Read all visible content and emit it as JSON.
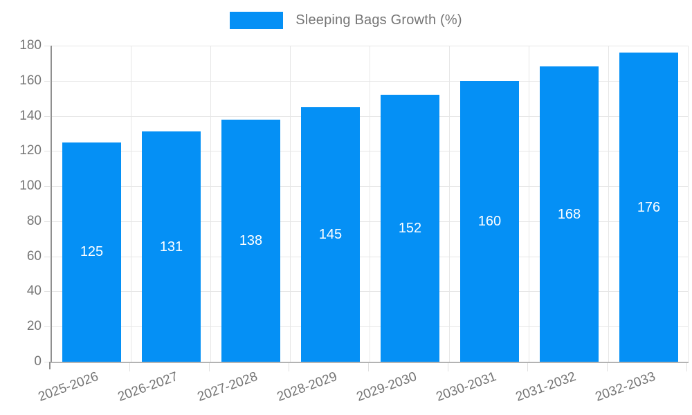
{
  "legend": {
    "label": "Sleeping Bags Growth (%)"
  },
  "colors": {
    "bar": "#0590f5",
    "axis_text": "#757575",
    "grid": "#e6e6e6",
    "baseline": "#b3b3b3",
    "axis_line": "#8f8f8f",
    "value_label": "#ffffff",
    "background": "#ffffff"
  },
  "chart_data": {
    "type": "bar",
    "title": "Sleeping Bags Growth (%)",
    "categories": [
      "2025-2026",
      "2026-2027",
      "2027-2028",
      "2028-2029",
      "2029-2030",
      "2030-2031",
      "2031-2032",
      "2032-2033"
    ],
    "series": [
      {
        "name": "Sleeping Bags Growth (%)",
        "values": [
          125,
          131,
          138,
          145,
          152,
          160,
          168,
          176
        ]
      }
    ],
    "xlabel": "",
    "ylabel": "",
    "ylim": [
      0,
      180
    ],
    "yticks": [
      0,
      20,
      40,
      60,
      80,
      100,
      120,
      140,
      160,
      180
    ],
    "grid": true,
    "legend_position": "top",
    "bar_value_labels": "inside-center",
    "x_tick_label_rotation_deg": -20
  }
}
